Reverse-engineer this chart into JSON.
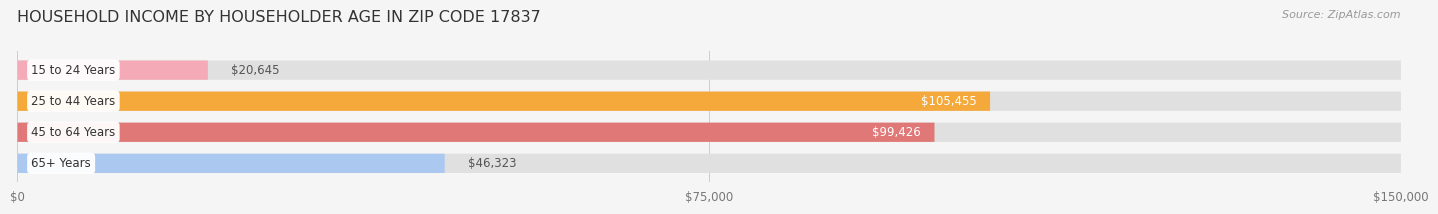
{
  "title": "HOUSEHOLD INCOME BY HOUSEHOLDER AGE IN ZIP CODE 17837",
  "source": "Source: ZipAtlas.com",
  "categories": [
    "15 to 24 Years",
    "25 to 44 Years",
    "45 to 64 Years",
    "65+ Years"
  ],
  "values": [
    20645,
    105455,
    99426,
    46323
  ],
  "bar_colors": [
    "#f5aab8",
    "#f5a93b",
    "#e07878",
    "#aac8f0"
  ],
  "bar_bg_color": "#e0e0e0",
  "xlim": [
    0,
    150000
  ],
  "xticks": [
    0,
    75000,
    150000
  ],
  "xtick_labels": [
    "$0",
    "$75,000",
    "$150,000"
  ],
  "background_color": "#f5f5f5",
  "bar_height": 0.62,
  "title_fontsize": 11.5,
  "label_fontsize": 8.5,
  "value_fontsize": 8.5,
  "source_fontsize": 8
}
